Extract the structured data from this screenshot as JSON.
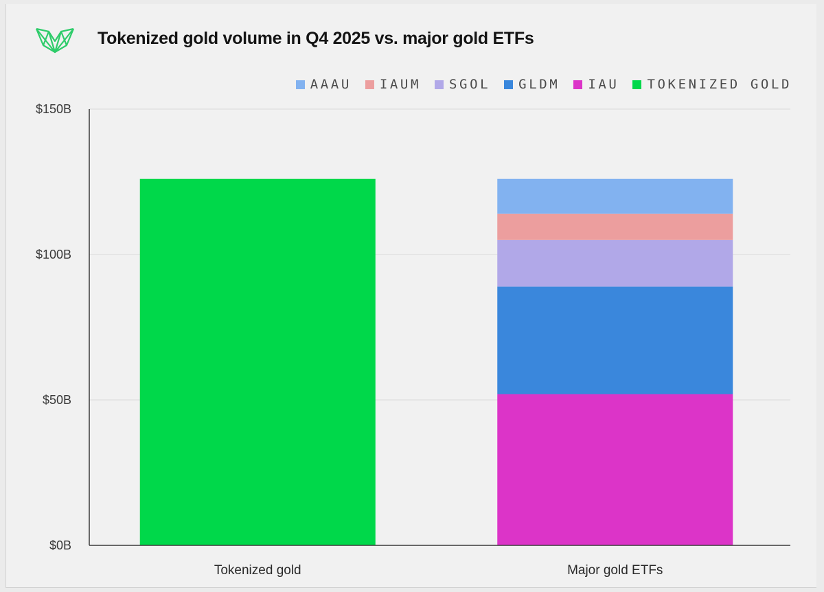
{
  "header": {
    "title": "Tokenized gold volume in Q4 2025 vs. major gold ETFs",
    "logo_icon": "geometric-crown-logo-icon",
    "logo_color": "#2ecc6a"
  },
  "chart_data": {
    "type": "bar",
    "stacked": true,
    "title": "Tokenized gold volume in Q4 2025 vs. major gold ETFs",
    "xlabel": "",
    "ylabel": "",
    "categories": [
      "Tokenized gold",
      "Major gold ETFs"
    ],
    "ylim": [
      0,
      150
    ],
    "yticks": [
      0,
      50,
      100,
      150
    ],
    "ytick_labels": [
      "$0B",
      "$50B",
      "$100B",
      "$150B"
    ],
    "grid": true,
    "legend_position": "top-right",
    "legend_order": [
      "AAAU",
      "IAUM",
      "SGOL",
      "GLDM",
      "IAU",
      "TOKENIZED GOLD"
    ],
    "series": [
      {
        "name": "TOKENIZED GOLD",
        "color": "#00d84a",
        "values": [
          126,
          0
        ]
      },
      {
        "name": "IAU",
        "color": "#dc34c8",
        "values": [
          0,
          52
        ]
      },
      {
        "name": "GLDM",
        "color": "#3a87dc",
        "values": [
          0,
          37
        ]
      },
      {
        "name": "SGOL",
        "color": "#b1a8e8",
        "values": [
          0,
          16
        ]
      },
      {
        "name": "IAUM",
        "color": "#ec9e9e",
        "values": [
          0,
          9
        ]
      },
      {
        "name": "AAAU",
        "color": "#82b2f0",
        "values": [
          0,
          12
        ]
      }
    ]
  }
}
